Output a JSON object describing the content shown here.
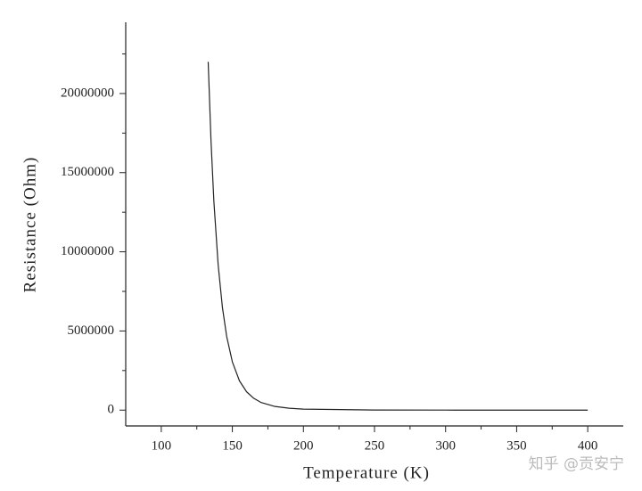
{
  "chart_data": {
    "type": "line",
    "x_label": "Temperature (K)",
    "y_label": "Resistance (Ohm)",
    "watermark": "知乎 @贡安宁",
    "x": [
      133,
      135,
      137,
      140,
      143,
      146,
      150,
      155,
      160,
      165,
      170,
      180,
      190,
      200,
      250,
      300,
      350,
      400
    ],
    "series": [
      {
        "name": "Resistance",
        "color": "#222222",
        "values": [
          22000000,
          17000000,
          13200000,
          9200000,
          6500000,
          4660000,
          3050000,
          1850000,
          1160000,
          750000,
          490000,
          230000,
          120000,
          64000,
          6300,
          1340,
          440,
          190
        ]
      }
    ],
    "xlim": [
      75,
      425
    ],
    "xticks": [
      100,
      150,
      200,
      250,
      300,
      350,
      400
    ],
    "xminorticks": [
      125,
      175,
      225,
      275,
      325,
      375
    ],
    "ylim": [
      -1000000,
      24500000
    ],
    "yticks": [
      0,
      5000000,
      10000000,
      15000000,
      20000000
    ],
    "yminorticks": [
      2500000,
      7500000,
      12500000,
      17500000,
      22500000
    ],
    "grid": false
  }
}
